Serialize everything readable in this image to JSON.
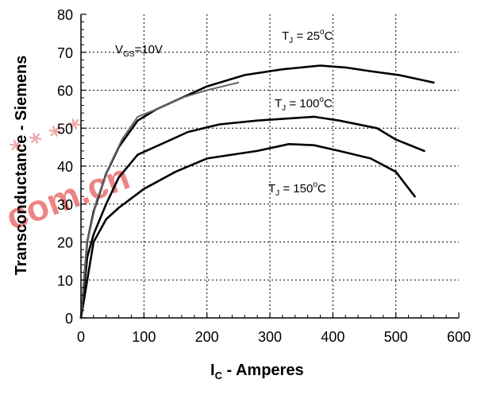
{
  "chart_data": {
    "type": "line",
    "xlabel": "I",
    "xlabel_sub": "C",
    "xlabel_rest": " - Amperes",
    "ylabel": "Transconductance - Siemens",
    "xlim": [
      0,
      600
    ],
    "ylim": [
      0,
      80
    ],
    "x_ticks": [
      0,
      100,
      200,
      300,
      400,
      500,
      600
    ],
    "y_ticks": [
      0,
      10,
      20,
      30,
      40,
      50,
      60,
      70,
      80
    ],
    "grid": true,
    "annotations": [
      {
        "text": "V",
        "sub": "GS",
        "rest": "=10V"
      },
      {
        "text": "T",
        "sub": "J",
        "rest": " = 25",
        "sup": "o",
        "tail": "C"
      },
      {
        "text": "T",
        "sub": "J",
        "rest": " = 100",
        "sup": "o",
        "tail": "C"
      },
      {
        "text": "T",
        "sub": "J",
        "rest": " = 150",
        "sup": "o",
        "tail": "C"
      }
    ],
    "series": [
      {
        "color": "#000000",
        "x": [
          0,
          5,
          10,
          20,
          40,
          60,
          90,
          120,
          160,
          200,
          260,
          320,
          380,
          420,
          460,
          505,
          560
        ],
        "y": [
          0,
          10,
          20,
          28,
          38,
          45,
          52,
          55,
          58,
          61,
          64,
          65.5,
          66.5,
          66,
          65,
          64,
          62
        ]
      },
      {
        "color": "#000000",
        "x": [
          0,
          5,
          10,
          20,
          40,
          60,
          90,
          130,
          170,
          220,
          280,
          370,
          410,
          470,
          500,
          545
        ],
        "y": [
          0,
          8,
          16,
          22,
          30,
          37,
          43,
          46,
          49,
          51,
          52,
          53,
          52,
          50,
          47,
          44
        ]
      },
      {
        "color": "#000000",
        "x": [
          0,
          5,
          10,
          20,
          40,
          60,
          100,
          150,
          200,
          280,
          330,
          370,
          410,
          460,
          500,
          530
        ],
        "y": [
          0,
          5,
          10,
          20,
          26,
          29,
          34,
          38.5,
          42,
          44,
          45.8,
          45.5,
          44,
          42,
          38.5,
          32
        ]
      },
      {
        "color": "#666666",
        "x": [
          0,
          10,
          25,
          45,
          65,
          90,
          120,
          160,
          200,
          250
        ],
        "y": [
          0,
          20,
          31,
          40,
          47,
          53,
          55,
          58,
          60,
          62
        ]
      }
    ]
  }
}
